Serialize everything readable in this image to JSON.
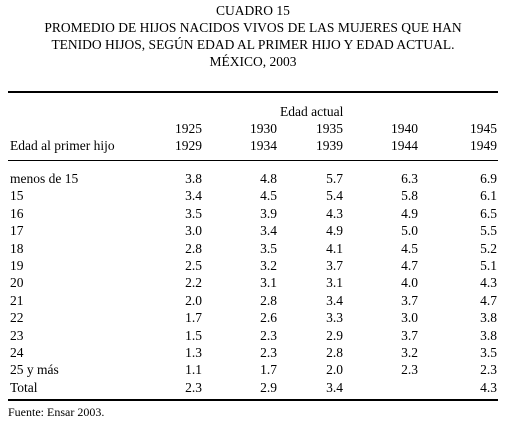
{
  "header": {
    "lines": [
      "CUADRO 15",
      "PROMEDIO DE HIJOS NACIDOS VIVOS DE LAS MUJERES QUE HAN",
      "TENIDO HIJOS, SEGÚN EDAD AL PRIMER HIJO Y EDAD ACTUAL.",
      "MÉXICO, 2003"
    ]
  },
  "table": {
    "group_header": "Edad actual",
    "row_header": "Edad al primer hijo",
    "columns": [
      [
        "1925",
        "1929"
      ],
      [
        "1930",
        "1934"
      ],
      [
        "1935",
        "1939"
      ],
      [
        "1940",
        "1944"
      ],
      [
        "1945",
        "1949"
      ]
    ],
    "rows": [
      [
        "menos de 15",
        "3.8",
        "4.8",
        "5.7",
        "6.3",
        "6.9"
      ],
      [
        "15",
        "3.4",
        "4.5",
        "5.4",
        "5.8",
        "6.1"
      ],
      [
        "16",
        "3.5",
        "3.9",
        "4.3",
        "4.9",
        "6.5"
      ],
      [
        "17",
        "3.0",
        "3.4",
        "4.9",
        "5.0",
        "5.5"
      ],
      [
        "18",
        "2.8",
        "3.5",
        "4.1",
        "4.5",
        "5.2"
      ],
      [
        "19",
        "2.5",
        "3.2",
        "3.7",
        "4.7",
        "5.1"
      ],
      [
        "20",
        "2.2",
        "3.1",
        "3.1",
        "4.0",
        "4.3"
      ],
      [
        "21",
        "2.0",
        "2.8",
        "3.4",
        "3.7",
        "4.7"
      ],
      [
        "22",
        "1.7",
        "2.6",
        "3.3",
        "3.0",
        "3.8"
      ],
      [
        "23",
        "1.5",
        "2.3",
        "2.9",
        "3.7",
        "3.8"
      ],
      [
        "24",
        "1.3",
        "2.3",
        "2.8",
        "3.2",
        "3.5"
      ],
      [
        "25 y más",
        "1.1",
        "1.7",
        "2.0",
        "2.3",
        "2.3"
      ],
      [
        "Total",
        "2.3",
        "2.9",
        "3.4",
        null,
        "4.3"
      ]
    ]
  },
  "footer": {
    "source": "Fuente: Ensar 2003."
  }
}
